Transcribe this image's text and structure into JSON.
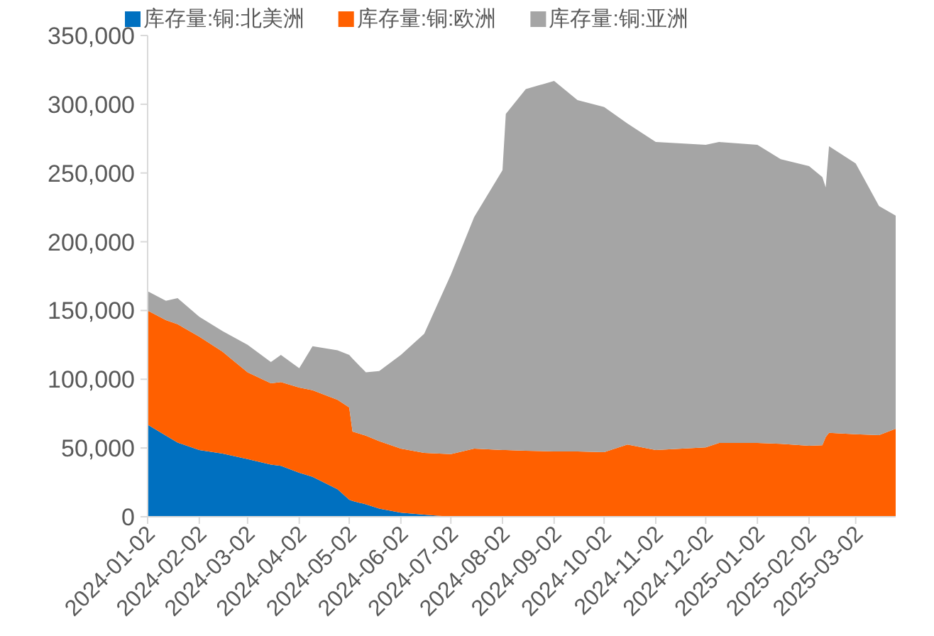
{
  "chart_data": {
    "type": "area",
    "stacked": true,
    "legend": "top",
    "grid": false,
    "x": [
      "2024-01-02",
      "2024-01-13",
      "2024-01-20",
      "2024-02-02",
      "2024-02-16",
      "2024-03-02",
      "2024-03-16",
      "2024-03-22",
      "2024-04-02",
      "2024-04-10",
      "2024-04-25",
      "2024-05-02",
      "2024-05-04",
      "2024-05-12",
      "2024-05-20",
      "2024-06-02",
      "2024-06-16",
      "2024-07-02",
      "2024-07-16",
      "2024-08-02",
      "2024-08-04",
      "2024-08-16",
      "2024-09-02",
      "2024-09-16",
      "2024-10-02",
      "2024-10-16",
      "2024-11-02",
      "2024-12-02",
      "2024-12-10",
      "2025-01-02",
      "2025-01-16",
      "2025-02-02",
      "2025-02-10",
      "2025-02-12",
      "2025-02-14",
      "2025-03-02",
      "2025-03-16",
      "2025-03-26"
    ],
    "series": [
      {
        "name": "库存量:铜:北美洲",
        "color": "#0070c0",
        "values": [
          67000,
          59000,
          54000,
          48500,
          46000,
          42000,
          38000,
          37000,
          32000,
          29000,
          20000,
          12400,
          11500,
          9000,
          6000,
          3000,
          1500,
          0,
          0,
          0,
          0,
          0,
          0,
          0,
          0,
          0,
          0,
          0,
          0,
          0,
          0,
          0,
          0,
          0,
          0,
          0,
          0,
          0
        ]
      },
      {
        "name": "库存量:铜:欧洲",
        "color": "#ff6000",
        "values": [
          83000,
          84000,
          86000,
          82500,
          74000,
          63000,
          59000,
          61000,
          62000,
          63000,
          65000,
          67100,
          50500,
          50000,
          49000,
          46500,
          45000,
          45500,
          49500,
          48500,
          48500,
          48000,
          47500,
          47500,
          47000,
          52500,
          48500,
          50500,
          53700,
          53700,
          53000,
          51600,
          52000,
          58000,
          61000,
          60000,
          59300,
          64000
        ]
      },
      {
        "name": "库存量:铜:亚洲",
        "color": "#a5a5a5",
        "values": [
          14000,
          14000,
          19000,
          14500,
          15000,
          20000,
          15500,
          19700,
          14000,
          32000,
          36000,
          38200,
          53000,
          46000,
          51000,
          68200,
          86500,
          130500,
          168500,
          203500,
          244500,
          263000,
          269500,
          255500,
          251000,
          233500,
          224000,
          220000,
          218800,
          216800,
          207000,
          203400,
          195000,
          181500,
          208500,
          197000,
          166700,
          155000
        ]
      }
    ],
    "xlim": [
      "2024-01-02",
      "2025-03-26"
    ],
    "xticks": [
      "2024-01-02",
      "2024-02-02",
      "2024-03-02",
      "2024-04-02",
      "2024-05-02",
      "2024-06-02",
      "2024-07-02",
      "2024-08-02",
      "2024-09-02",
      "2024-10-02",
      "2024-11-02",
      "2024-12-02",
      "2025-01-02",
      "2025-02-02",
      "2025-03-02"
    ],
    "ylim": [
      0,
      350000
    ],
    "yticks": [
      0,
      {
        "value": 50000,
        "label": "50,000"
      },
      {
        "value": 100000,
        "label": "100,000"
      },
      {
        "value": 150000,
        "label": "150,000"
      },
      {
        "value": 200000,
        "label": "200,000"
      },
      {
        "value": 250000,
        "label": "250,000"
      },
      {
        "value": 300000,
        "label": "300,000"
      },
      {
        "value": 350000,
        "label": "350,000"
      }
    ]
  }
}
